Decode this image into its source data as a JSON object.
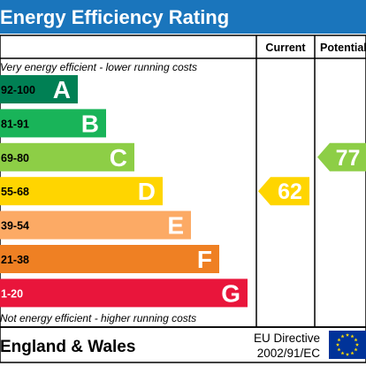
{
  "title": "Energy Efficiency Rating",
  "columns": {
    "current": "Current",
    "potential": "Potential"
  },
  "top_note": "Very energy efficient - lower running costs",
  "bottom_note": "Not energy efficient - higher running costs",
  "bands": [
    {
      "range": "92-100",
      "letter": "A",
      "color": "#008054",
      "range_color": "#000000"
    },
    {
      "range": "81-91",
      "letter": "B",
      "color": "#19b459",
      "range_color": "#000000"
    },
    {
      "range": "69-80",
      "letter": "C",
      "color": "#8dce46",
      "range_color": "#000000"
    },
    {
      "range": "55-68",
      "letter": "D",
      "color": "#ffd500",
      "range_color": "#000000"
    },
    {
      "range": "39-54",
      "letter": "E",
      "color": "#fcaa65",
      "range_color": "#000000"
    },
    {
      "range": "21-38",
      "letter": "F",
      "color": "#ef8023",
      "range_color": "#000000"
    },
    {
      "range": "1-20",
      "letter": "G",
      "color": "#e9153b",
      "range_color": "#ffffff"
    }
  ],
  "current": {
    "value": "62",
    "band": "D",
    "color": "#ffd500"
  },
  "potential": {
    "value": "77",
    "band": "C",
    "color": "#8dce46"
  },
  "footer": {
    "region": "England & Wales",
    "directive_line1": "EU Directive",
    "directive_line2": "2002/91/EC"
  },
  "colors": {
    "title_bg": "#1a75bc",
    "eu_flag_bg": "#003399",
    "eu_star": "#ffdd00"
  },
  "icons": {
    "eu_flag": "eu-flag-icon"
  }
}
